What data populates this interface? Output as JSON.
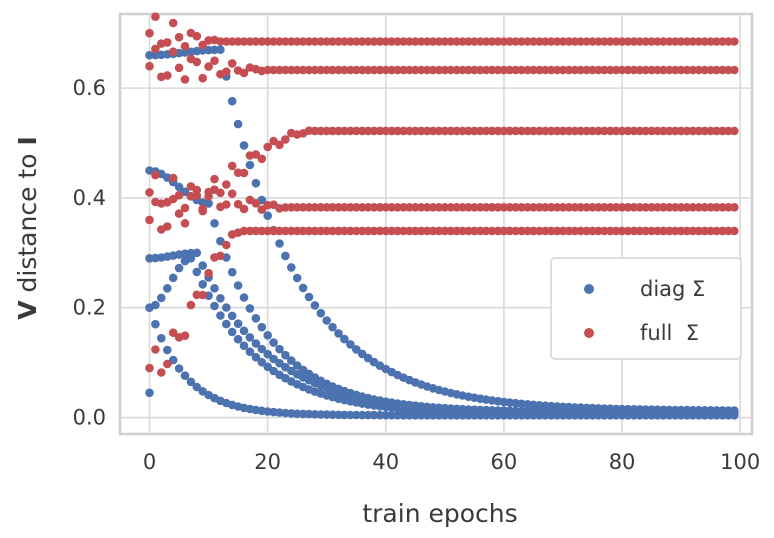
{
  "chart_data": {
    "type": "scatter",
    "title": "",
    "xlabel": "train epochs",
    "ylabel_bold_v": "V",
    "ylabel_text": " distance to ",
    "ylabel_bold_i": "I",
    "xlim": [
      -5,
      102
    ],
    "ylim": [
      -0.03,
      0.735
    ],
    "xticks": [
      0,
      20,
      40,
      60,
      80,
      100
    ],
    "xtick_labels": [
      "0",
      "20",
      "40",
      "60",
      "80",
      "100"
    ],
    "yticks": [
      0.0,
      0.2,
      0.4,
      0.6
    ],
    "ytick_labels": [
      "0.0",
      "0.2",
      "0.4",
      "0.6"
    ],
    "grid": true,
    "legend_position": "center-right",
    "series": [
      {
        "name": "diag Σ",
        "color": "#4c72b0",
        "curves": [
          {
            "start": 0.66,
            "peak_epoch": 12,
            "peak": 0.67,
            "final": 0.012,
            "tau": 13
          },
          {
            "start": 0.45,
            "peak_epoch": 10,
            "peak": 0.39,
            "final": 0.01,
            "tau": 10
          },
          {
            "start": 0.29,
            "peak_epoch": 8,
            "peak": 0.3,
            "final": 0.008,
            "tau": 12
          },
          {
            "start": 0.2,
            "peak_epoch": 7,
            "peak": 0.29,
            "final": 0.005,
            "tau": 11
          },
          {
            "start": 0.045,
            "peak_epoch": 1,
            "peak": 0.17,
            "final": 0.004,
            "tau": 6
          }
        ]
      },
      {
        "name": "full  Σ",
        "color": "#c44e52",
        "curves": [
          {
            "start": 0.7,
            "settle_epoch": 12,
            "final": 0.685
          },
          {
            "start": 0.64,
            "settle_epoch": 20,
            "final": 0.633
          },
          {
            "start": 0.36,
            "settle_epoch": 28,
            "final": 0.522
          },
          {
            "start": 0.41,
            "settle_epoch": 24,
            "final": 0.383
          },
          {
            "start": 0.09,
            "settle_epoch": 16,
            "final": 0.34
          }
        ]
      }
    ]
  }
}
